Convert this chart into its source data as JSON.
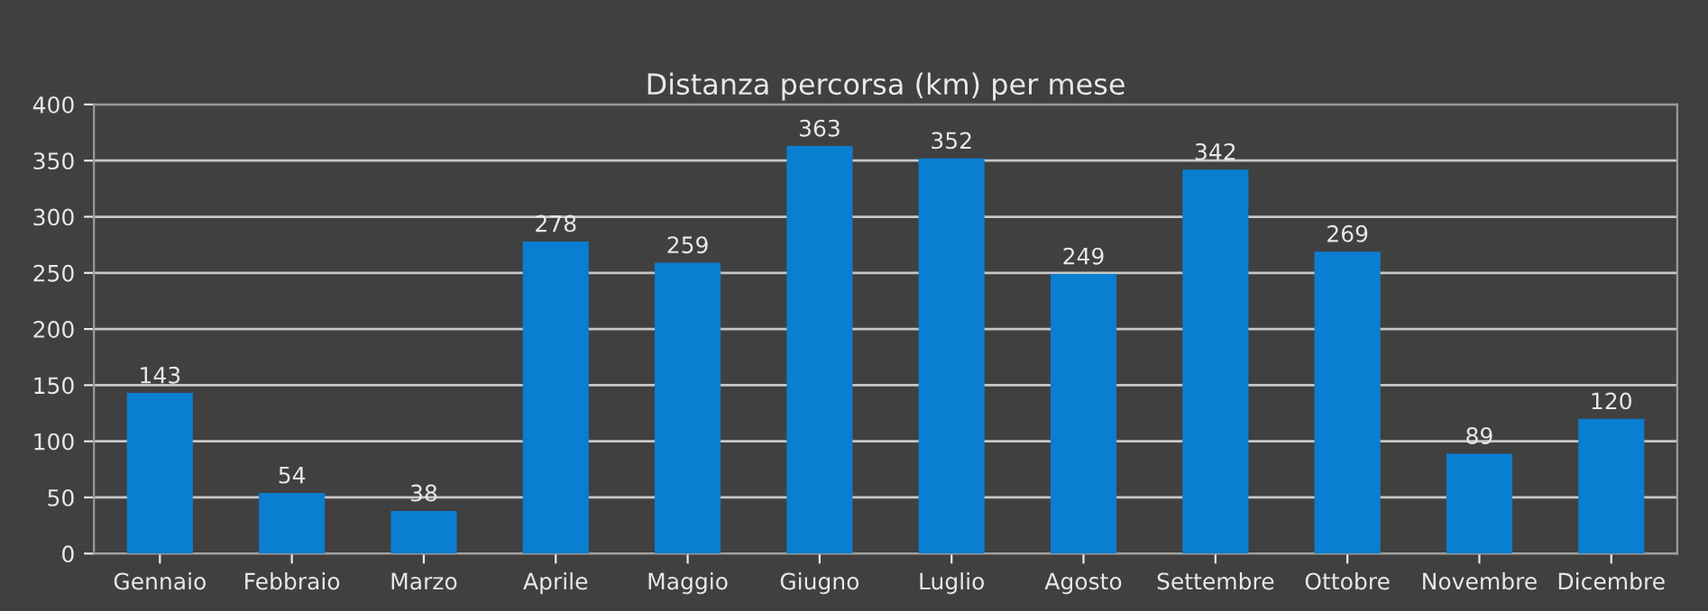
{
  "chart_data": {
    "type": "bar",
    "title": "Distanza percorsa (km) per mese",
    "categories": [
      "Gennaio",
      "Febbraio",
      "Marzo",
      "Aprile",
      "Maggio",
      "Giugno",
      "Luglio",
      "Agosto",
      "Settembre",
      "Ottobre",
      "Novembre",
      "Dicembre"
    ],
    "values": [
      143,
      54,
      38,
      278,
      259,
      363,
      352,
      249,
      342,
      269,
      89,
      120
    ],
    "color": "#0a7ed0",
    "ylim": [
      0,
      400
    ],
    "yticks": [
      0,
      50,
      100,
      150,
      200,
      250,
      300,
      350,
      400
    ],
    "grid": "y",
    "data_labels": true,
    "legend": false
  }
}
